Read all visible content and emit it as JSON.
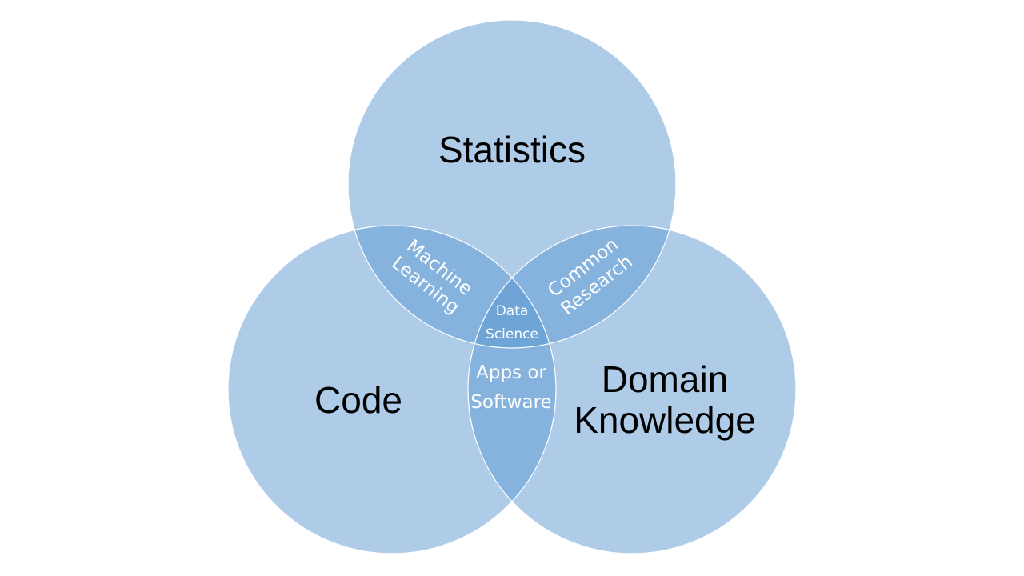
{
  "diagram": {
    "colors": {
      "circle_fill": "#aecbe8",
      "pair_overlap_fill": "#85b3de",
      "center_fill": "#6ea4d6",
      "outline": "#ffffff",
      "big_label": "#000000",
      "small_label": "#ffffff"
    },
    "circles": {
      "statistics": {
        "label": "Statistics"
      },
      "code": {
        "label": "Code"
      },
      "domain": {
        "line1": "Domain",
        "line2": "Knowledge"
      }
    },
    "overlaps": {
      "machine_learning": {
        "line1": "Machine",
        "line2": "Learning"
      },
      "common_research": {
        "line1": "Common",
        "line2": "Research"
      },
      "apps_software": {
        "line1": "Apps or",
        "line2": "Software"
      },
      "data_science": {
        "line1": "Data",
        "line2": "Science"
      }
    }
  }
}
